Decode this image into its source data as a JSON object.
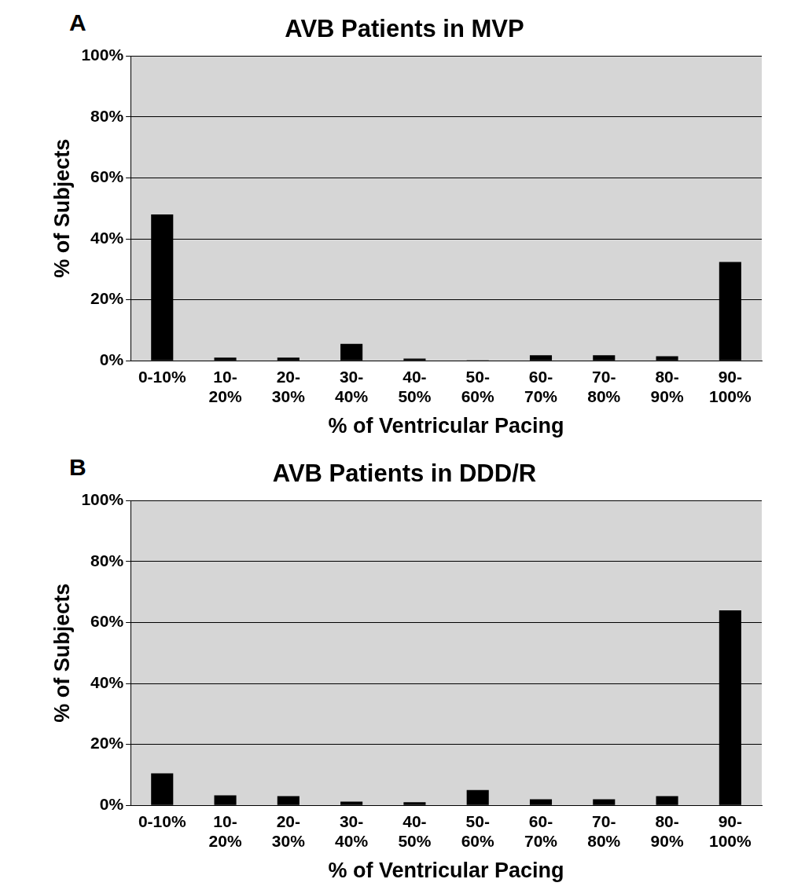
{
  "chart_data": [
    {
      "type": "bar",
      "title": "AVB Patients in MVP",
      "annotations": [
        "A"
      ],
      "x_label": "% of Ventricular Pacing",
      "y_label": "% of Subjects",
      "categories": [
        "0-10%",
        "10-20%",
        "20-30%",
        "30-40%",
        "40-50%",
        "50-60%",
        "60-70%",
        "70-80%",
        "80-90%",
        "90-100%"
      ],
      "values": [
        48,
        1,
        1,
        5.5,
        0.7,
        0.2,
        1.8,
        1.8,
        1.5,
        32.4
      ],
      "color": "#000000",
      "ylim": [
        0,
        100
      ],
      "yticks": [
        {
          "value": 0,
          "label": "0%"
        },
        {
          "value": 20,
          "label": "20%"
        },
        {
          "value": 40,
          "label": "40%"
        },
        {
          "value": 60,
          "label": "60%"
        },
        {
          "value": 80,
          "label": "80%"
        },
        {
          "value": 100,
          "label": "100%"
        }
      ],
      "grid": true
    },
    {
      "type": "bar",
      "title": "AVB Patients in DDD/R",
      "annotations": [
        "B"
      ],
      "x_label": "% of Ventricular Pacing",
      "y_label": "% of Subjects",
      "categories": [
        "0-10%",
        "10-20%",
        "20-30%",
        "30-40%",
        "40-50%",
        "50-60%",
        "60-70%",
        "70-80%",
        "80-90%",
        "90-100%"
      ],
      "values": [
        10.5,
        3.3,
        3,
        1.2,
        1,
        5,
        2,
        2,
        3,
        64
      ],
      "color": "#000000",
      "ylim": [
        0,
        100
      ],
      "yticks": [
        {
          "value": 0,
          "label": "0%"
        },
        {
          "value": 20,
          "label": "20%"
        },
        {
          "value": 40,
          "label": "40%"
        },
        {
          "value": 60,
          "label": "60%"
        },
        {
          "value": 80,
          "label": "80%"
        },
        {
          "value": 100,
          "label": "100%"
        }
      ],
      "grid": true
    }
  ]
}
